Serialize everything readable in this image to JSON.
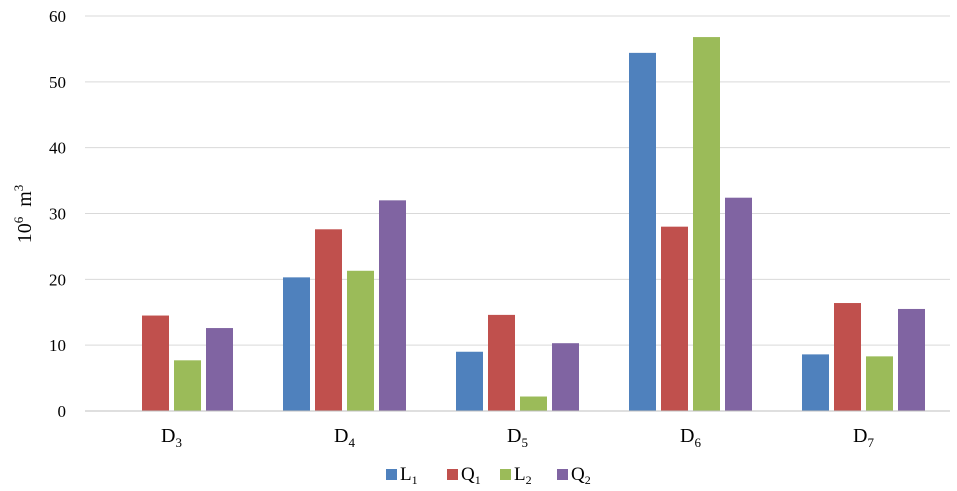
{
  "chart_data": {
    "type": "bar",
    "title": "",
    "ylabel": {
      "base": "10",
      "base_exp": "6",
      "unit": "m",
      "unit_exp": "3"
    },
    "xlabel": "",
    "ylim": [
      0,
      60
    ],
    "yticks": [
      0,
      10,
      20,
      30,
      40,
      50,
      60
    ],
    "grid": true,
    "legend_position": "bottom",
    "categories": [
      {
        "main": "D",
        "sub": "3"
      },
      {
        "main": "D",
        "sub": "4"
      },
      {
        "main": "D",
        "sub": "5"
      },
      {
        "main": "D",
        "sub": "6"
      },
      {
        "main": "D",
        "sub": "7"
      }
    ],
    "series": [
      {
        "name": {
          "main": "L",
          "sub": "1"
        },
        "color": "#4f81bd",
        "values": [
          0,
          20.3,
          9.0,
          54.4,
          8.6
        ]
      },
      {
        "name": {
          "main": "Q",
          "sub": "1"
        },
        "color": "#c0504d",
        "values": [
          14.5,
          27.6,
          14.6,
          28.0,
          16.4
        ]
      },
      {
        "name": {
          "main": "L",
          "sub": "2"
        },
        "color": "#9bbb59",
        "values": [
          7.7,
          21.3,
          2.2,
          56.8,
          8.3
        ]
      },
      {
        "name": {
          "main": "Q",
          "sub": "2"
        },
        "color": "#8064a2",
        "values": [
          12.6,
          32.0,
          10.3,
          32.4,
          15.5
        ]
      }
    ]
  }
}
